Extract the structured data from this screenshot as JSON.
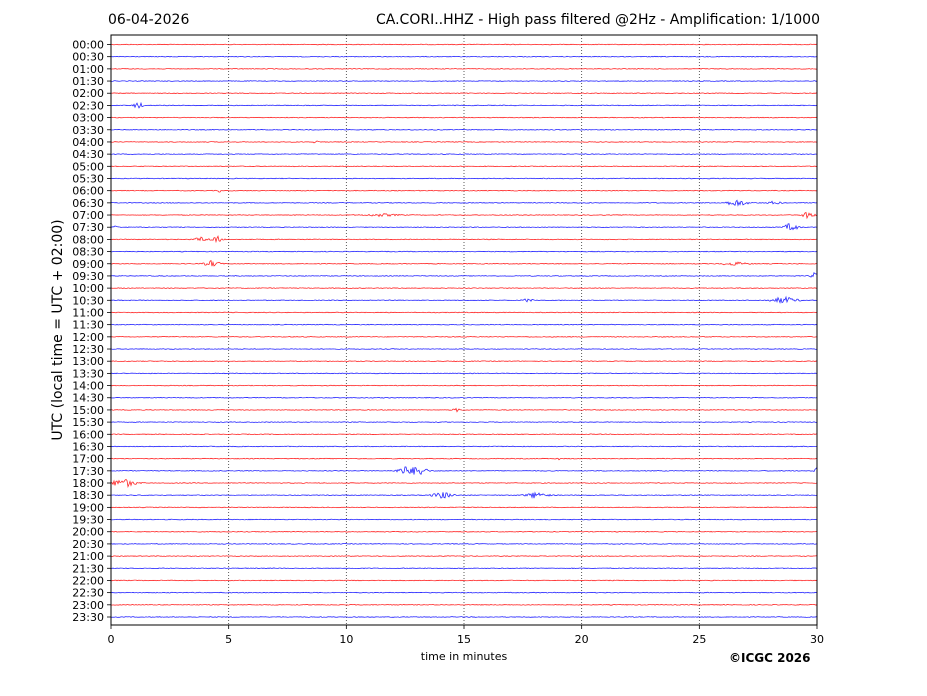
{
  "header": {
    "date": "06-04-2026",
    "title": "CA.CORI..HHZ - High pass filtered @2Hz - Amplification: 1/1000"
  },
  "footer": {
    "copyright": "©ICGC 2026"
  },
  "chart_data": {
    "type": "line",
    "title": "CA.CORI..HHZ - High pass filtered @2Hz - Amplification: 1/1000",
    "xlabel": "time in minutes",
    "ylabel": "UTC (local time = UTC + 02:00)",
    "xlim": [
      0,
      30
    ],
    "xticks": [
      "0",
      "5",
      "10",
      "15",
      "20",
      "25",
      "30"
    ],
    "grid": "vertical dotted at 5-minute ticks",
    "row_colors": [
      "#ff0000",
      "#0000ff"
    ],
    "rows": [
      "00:00",
      "00:30",
      "01:00",
      "01:30",
      "02:00",
      "02:30",
      "03:00",
      "03:30",
      "04:00",
      "04:30",
      "05:00",
      "05:30",
      "06:00",
      "06:30",
      "07:00",
      "07:30",
      "08:00",
      "08:30",
      "09:00",
      "09:30",
      "10:00",
      "10:30",
      "11:00",
      "11:30",
      "12:00",
      "12:30",
      "13:00",
      "13:30",
      "14:00",
      "14:30",
      "15:00",
      "15:30",
      "16:00",
      "16:30",
      "17:00",
      "17:30",
      "18:00",
      "18:30",
      "19:00",
      "19:30",
      "20:00",
      "20:30",
      "21:00",
      "21:30",
      "22:00",
      "22:30",
      "23:00",
      "23:30"
    ],
    "events": [
      {
        "row": "02:30",
        "minute": 1.15,
        "amplitude": 4,
        "duration": 0.3
      },
      {
        "row": "04:00",
        "minute": 8.7,
        "amplitude": 1,
        "duration": 0.3
      },
      {
        "row": "06:00",
        "minute": 4.6,
        "amplitude": 1.5,
        "duration": 0.1
      },
      {
        "row": "06:30",
        "minute": 26.6,
        "amplitude": 3,
        "duration": 0.8
      },
      {
        "row": "06:30",
        "minute": 28.2,
        "amplitude": 1.5,
        "duration": 0.5
      },
      {
        "row": "07:00",
        "minute": 11.5,
        "amplitude": 1.2,
        "duration": 1.2
      },
      {
        "row": "07:00",
        "minute": 29.6,
        "amplitude": 3,
        "duration": 0.5
      },
      {
        "row": "07:30",
        "minute": 28.9,
        "amplitude": 4,
        "duration": 0.5
      },
      {
        "row": "07:30",
        "minute": 0.2,
        "amplitude": 1.5,
        "duration": 0.2
      },
      {
        "row": "08:00",
        "minute": 3.8,
        "amplitude": 2.5,
        "duration": 0.4
      },
      {
        "row": "08:00",
        "minute": 4.5,
        "amplitude": 3,
        "duration": 0.5
      },
      {
        "row": "09:00",
        "minute": 4.3,
        "amplitude": 3,
        "duration": 0.6
      },
      {
        "row": "09:00",
        "minute": 26.5,
        "amplitude": 1.5,
        "duration": 1.0
      },
      {
        "row": "09:30",
        "minute": 29.9,
        "amplitude": 3,
        "duration": 0.3
      },
      {
        "row": "10:30",
        "minute": 17.7,
        "amplitude": 1.5,
        "duration": 0.4
      },
      {
        "row": "10:30",
        "minute": 28.6,
        "amplitude": 3,
        "duration": 1.0
      },
      {
        "row": "15:00",
        "minute": 14.7,
        "amplitude": 1.5,
        "duration": 0.3
      },
      {
        "row": "17:00",
        "minute": 19.0,
        "amplitude": 1.5,
        "duration": 0.1
      },
      {
        "row": "17:30",
        "minute": 12.5,
        "amplitude": 4,
        "duration": 0.6
      },
      {
        "row": "17:30",
        "minute": 13.1,
        "amplitude": 5,
        "duration": 0.6
      },
      {
        "row": "17:30",
        "minute": 30.0,
        "amplitude": 4,
        "duration": 0.2
      },
      {
        "row": "18:00",
        "minute": 0.5,
        "amplitude": 4,
        "duration": 1.0
      },
      {
        "row": "18:30",
        "minute": 14.1,
        "amplitude": 3,
        "duration": 0.8
      },
      {
        "row": "18:30",
        "minute": 18.1,
        "amplitude": 3,
        "duration": 0.8
      }
    ]
  }
}
